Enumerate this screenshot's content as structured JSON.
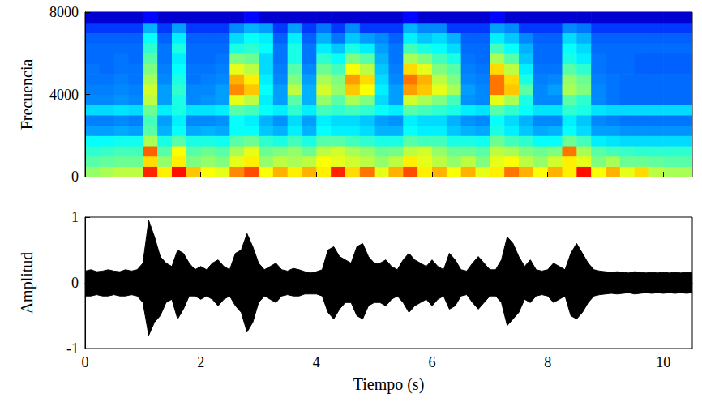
{
  "chart_data": [
    {
      "type": "heatmap",
      "ylabel": "Frecuencia",
      "xlim": [
        0,
        10.5
      ],
      "xticks": [
        0,
        2,
        4,
        6,
        8,
        10
      ],
      "ylim": [
        0,
        8000
      ],
      "yticks": [
        0,
        4000,
        8000
      ],
      "tick_labels": "y",
      "clim": [
        0,
        10
      ],
      "time_edges": [
        0,
        0.25,
        0.5,
        0.75,
        1,
        1.25,
        1.5,
        1.75,
        2,
        2.25,
        2.5,
        2.75,
        3,
        3.25,
        3.5,
        3.75,
        4,
        4.25,
        4.5,
        4.75,
        5,
        5.25,
        5.5,
        5.75,
        6,
        6.25,
        6.5,
        6.75,
        7,
        7.25,
        7.5,
        7.75,
        8,
        8.25,
        8.5,
        8.75,
        9,
        9.25,
        9.5,
        9.75,
        10,
        10.25,
        10.5
      ],
      "freq_edges": [
        0,
        500,
        1000,
        1500,
        2000,
        2500,
        3000,
        3500,
        4000,
        4500,
        5000,
        5500,
        6000,
        6500,
        7000,
        7500,
        8000
      ],
      "cells": [
        [
          5.2,
          5.4,
          5.6,
          5.6,
          8.4,
          6.4,
          8.6,
          6.8,
          6.2,
          6.0,
          7.4,
          8.0,
          6.2,
          7.0,
          6.4,
          7.0,
          6.4,
          8.4,
          6.6,
          7.6,
          6.0,
          7.0,
          8.0,
          6.4,
          7.0,
          6.2,
          7.0,
          6.0,
          6.4,
          7.6,
          7.0,
          6.2,
          7.0,
          6.4,
          8.6,
          6.2,
          7.0,
          6.0,
          6.6,
          5.6,
          5.4,
          5.4
        ],
        [
          4.6,
          4.7,
          4.8,
          4.8,
          6.6,
          5.2,
          6.4,
          5.0,
          5.2,
          5.0,
          6.0,
          6.4,
          5.2,
          5.6,
          5.4,
          5.6,
          6.2,
          6.0,
          5.8,
          5.6,
          5.2,
          5.6,
          6.4,
          6.0,
          5.6,
          5.2,
          5.6,
          5.0,
          6.0,
          6.2,
          5.6,
          5.2,
          5.8,
          6.4,
          6.0,
          5.0,
          5.4,
          4.8,
          4.8,
          4.7,
          4.6,
          4.6
        ],
        [
          4.2,
          4.3,
          4.4,
          4.4,
          7.8,
          4.6,
          6.2,
          4.6,
          4.8,
          4.6,
          5.4,
          6.0,
          4.8,
          5.0,
          5.2,
          4.8,
          5.6,
          5.8,
          5.4,
          5.2,
          4.8,
          4.9,
          5.6,
          5.8,
          5.2,
          4.8,
          4.8,
          4.6,
          5.6,
          5.4,
          5.0,
          4.8,
          5.0,
          7.6,
          5.4,
          4.6,
          4.4,
          4.3,
          4.2,
          4.2,
          4.2,
          4.2
        ],
        [
          3.8,
          3.8,
          3.9,
          3.9,
          5.4,
          4.0,
          4.6,
          4.0,
          4.0,
          3.9,
          4.6,
          4.8,
          4.2,
          4.0,
          4.4,
          4.0,
          4.6,
          4.6,
          4.4,
          4.2,
          4.0,
          4.0,
          4.6,
          4.4,
          4.4,
          4.0,
          4.0,
          3.9,
          4.8,
          4.4,
          4.2,
          3.8,
          3.8,
          4.8,
          4.4,
          3.6,
          3.5,
          3.4,
          3.4,
          3.4,
          3.4,
          3.4
        ],
        [
          2.8,
          2.8,
          2.9,
          2.8,
          4.6,
          3.0,
          3.8,
          2.9,
          3.0,
          2.9,
          3.8,
          3.8,
          3.2,
          3.0,
          3.6,
          3.0,
          3.8,
          3.6,
          3.6,
          3.4,
          3.0,
          3.0,
          3.8,
          3.6,
          3.6,
          3.2,
          3.0,
          2.9,
          4.0,
          3.6,
          3.2,
          2.9,
          3.0,
          3.8,
          3.4,
          2.8,
          2.8,
          2.7,
          2.7,
          2.7,
          2.7,
          2.7
        ],
        [
          2.5,
          2.5,
          2.6,
          2.5,
          4.4,
          2.8,
          3.6,
          2.6,
          2.6,
          2.7,
          3.8,
          3.6,
          3.0,
          2.7,
          3.4,
          2.8,
          3.6,
          3.4,
          3.4,
          3.2,
          2.8,
          2.7,
          3.6,
          3.4,
          3.4,
          3.0,
          2.7,
          2.6,
          3.8,
          3.4,
          3.0,
          2.6,
          2.6,
          3.6,
          3.2,
          2.6,
          2.5,
          2.4,
          2.4,
          2.4,
          2.4,
          2.4
        ],
        [
          3.4,
          3.4,
          3.5,
          3.4,
          4.8,
          3.6,
          4.0,
          3.5,
          3.5,
          3.6,
          4.6,
          4.4,
          3.8,
          3.6,
          4.2,
          3.6,
          4.4,
          4.2,
          4.4,
          4.2,
          3.8,
          3.6,
          4.6,
          4.4,
          4.2,
          4.0,
          3.6,
          3.5,
          4.6,
          4.2,
          3.8,
          3.5,
          3.5,
          4.2,
          4.0,
          3.5,
          3.4,
          3.4,
          3.4,
          3.4,
          3.4,
          3.4
        ],
        [
          2.6,
          2.6,
          2.7,
          2.6,
          5.6,
          2.8,
          4.0,
          2.6,
          2.7,
          2.8,
          6.0,
          5.6,
          3.6,
          2.8,
          4.6,
          3.0,
          5.2,
          4.6,
          5.4,
          5.0,
          3.4,
          2.8,
          5.8,
          5.4,
          5.0,
          4.4,
          2.7,
          2.6,
          6.0,
          5.4,
          4.0,
          2.6,
          2.6,
          4.6,
          4.2,
          2.6,
          2.4,
          2.3,
          2.3,
          2.3,
          2.3,
          2.3
        ],
        [
          2.5,
          2.5,
          2.6,
          2.5,
          5.8,
          2.8,
          4.2,
          2.6,
          2.6,
          2.8,
          7.4,
          6.8,
          3.8,
          2.8,
          5.6,
          3.0,
          5.8,
          5.2,
          6.8,
          6.2,
          3.6,
          2.8,
          7.2,
          6.8,
          6.0,
          5.4,
          2.8,
          2.6,
          7.6,
          6.8,
          4.6,
          2.6,
          2.8,
          5.4,
          5.0,
          2.6,
          2.4,
          2.3,
          2.3,
          2.3,
          2.3,
          2.3
        ],
        [
          2.4,
          2.4,
          2.5,
          2.4,
          5.4,
          2.6,
          4.0,
          2.4,
          2.5,
          2.6,
          7.0,
          6.4,
          3.6,
          2.6,
          5.0,
          2.8,
          5.4,
          5.0,
          7.2,
          6.6,
          3.4,
          2.6,
          7.6,
          7.0,
          5.6,
          5.0,
          2.6,
          2.5,
          7.6,
          6.6,
          4.0,
          2.5,
          2.6,
          5.2,
          4.8,
          2.5,
          2.4,
          2.3,
          2.3,
          2.3,
          2.3,
          2.3
        ],
        [
          2.4,
          2.3,
          2.4,
          2.4,
          5.0,
          2.5,
          3.8,
          2.4,
          2.4,
          2.5,
          6.0,
          5.6,
          3.4,
          2.5,
          4.6,
          2.6,
          4.8,
          4.4,
          6.2,
          5.6,
          3.2,
          2.5,
          6.6,
          6.0,
          5.0,
          4.6,
          2.5,
          2.4,
          6.6,
          5.6,
          3.6,
          2.4,
          2.4,
          4.6,
          4.2,
          2.4,
          2.3,
          2.3,
          2.2,
          2.2,
          2.2,
          2.2
        ],
        [
          2.3,
          2.3,
          2.4,
          2.3,
          4.6,
          2.4,
          3.6,
          2.3,
          2.3,
          2.4,
          5.0,
          4.8,
          3.4,
          2.4,
          4.0,
          2.4,
          4.2,
          3.8,
          5.0,
          4.6,
          3.0,
          2.4,
          5.4,
          5.0,
          4.4,
          4.0,
          2.4,
          2.3,
          5.4,
          4.6,
          3.2,
          2.3,
          2.3,
          4.0,
          3.6,
          2.4,
          2.3,
          2.3,
          2.2,
          2.2,
          2.2,
          2.2
        ],
        [
          2.3,
          2.3,
          2.3,
          2.3,
          4.2,
          2.4,
          4.0,
          2.3,
          2.3,
          2.3,
          4.0,
          4.2,
          3.8,
          2.4,
          4.0,
          2.4,
          3.6,
          3.2,
          4.0,
          3.6,
          2.8,
          2.4,
          4.4,
          4.0,
          3.8,
          3.4,
          2.3,
          2.3,
          4.4,
          3.8,
          3.0,
          2.3,
          2.3,
          3.8,
          3.4,
          2.3,
          2.3,
          2.3,
          2.3,
          2.3,
          2.3,
          2.3
        ],
        [
          2.2,
          2.2,
          2.2,
          2.2,
          3.8,
          2.2,
          3.6,
          2.2,
          2.2,
          2.2,
          3.4,
          3.8,
          3.6,
          2.2,
          3.6,
          2.2,
          3.0,
          2.4,
          3.2,
          2.8,
          2.6,
          2.2,
          3.6,
          3.2,
          3.4,
          3.0,
          2.2,
          2.2,
          3.6,
          3.2,
          2.6,
          2.2,
          2.2,
          3.4,
          3.0,
          2.2,
          2.2,
          2.2,
          2.2,
          2.2,
          2.2,
          2.2
        ],
        [
          1.8,
          1.8,
          1.8,
          1.8,
          3.0,
          1.8,
          2.8,
          1.8,
          1.8,
          1.8,
          2.6,
          3.0,
          2.8,
          1.8,
          2.8,
          1.8,
          2.4,
          1.8,
          2.6,
          1.8,
          1.8,
          1.8,
          3.0,
          2.6,
          2.6,
          1.8,
          1.8,
          1.8,
          2.8,
          2.6,
          1.8,
          1.8,
          1.8,
          2.6,
          2.4,
          1.8,
          1.8,
          1.8,
          1.8,
          1.8,
          1.8,
          1.8
        ],
        [
          0.8,
          0.8,
          0.8,
          0.8,
          1.3,
          0.8,
          0.8,
          0.8,
          0.8,
          0.8,
          0.8,
          1.3,
          0.8,
          0.8,
          0.8,
          0.8,
          0.8,
          0.8,
          0.8,
          0.8,
          0.8,
          0.8,
          1.3,
          0.8,
          0.8,
          0.8,
          0.8,
          0.8,
          1.3,
          0.8,
          0.8,
          0.8,
          0.8,
          0.8,
          0.8,
          0.8,
          0.8,
          0.8,
          0.8,
          0.8,
          0.8,
          0.8
        ]
      ]
    },
    {
      "type": "line",
      "xlabel": "Tiempo (s)",
      "ylabel": "Amplitud",
      "xlim": [
        0,
        10.5
      ],
      "xticks": [
        0,
        2,
        4,
        6,
        8,
        10
      ],
      "ylim": [
        -1,
        1
      ],
      "yticks": [
        -1,
        0,
        1
      ],
      "x": [
        0,
        0.1,
        0.2,
        0.3,
        0.4,
        0.5,
        0.6,
        0.7,
        0.8,
        0.9,
        1,
        1.1,
        1.2,
        1.3,
        1.4,
        1.5,
        1.6,
        1.7,
        1.8,
        1.9,
        2,
        2.1,
        2.2,
        2.3,
        2.4,
        2.5,
        2.6,
        2.7,
        2.8,
        2.9,
        3,
        3.1,
        3.2,
        3.3,
        3.4,
        3.5,
        3.6,
        3.7,
        3.8,
        3.9,
        4,
        4.1,
        4.2,
        4.3,
        4.4,
        4.5,
        4.6,
        4.7,
        4.8,
        4.9,
        5,
        5.1,
        5.2,
        5.3,
        5.4,
        5.5,
        5.6,
        5.7,
        5.8,
        5.9,
        6,
        6.1,
        6.2,
        6.3,
        6.4,
        6.5,
        6.6,
        6.7,
        6.8,
        6.9,
        7,
        7.1,
        7.2,
        7.3,
        7.4,
        7.5,
        7.6,
        7.7,
        7.8,
        7.9,
        8,
        8.1,
        8.2,
        8.3,
        8.4,
        8.5,
        8.6,
        8.7,
        8.8,
        8.9,
        9,
        9.1,
        9.2,
        9.3,
        9.4,
        9.5,
        9.6,
        9.7,
        9.8,
        9.9,
        10,
        10.1,
        10.2,
        10.3,
        10.4,
        10.5
      ],
      "series": [
        {
          "color": "#000000",
          "values": [
            0.18,
            0.2,
            0.17,
            0.18,
            0.2,
            0.18,
            0.17,
            0.2,
            0.18,
            0.2,
            0.3,
            0.95,
            0.7,
            0.4,
            0.3,
            0.25,
            0.5,
            0.45,
            0.3,
            0.2,
            0.25,
            0.2,
            0.3,
            0.35,
            0.25,
            0.2,
            0.45,
            0.5,
            0.75,
            0.55,
            0.3,
            0.2,
            0.25,
            0.3,
            0.2,
            0.18,
            0.22,
            0.2,
            0.17,
            0.15,
            0.17,
            0.2,
            0.5,
            0.55,
            0.4,
            0.35,
            0.3,
            0.55,
            0.6,
            0.4,
            0.3,
            0.3,
            0.35,
            0.25,
            0.2,
            0.35,
            0.45,
            0.35,
            0.3,
            0.25,
            0.35,
            0.25,
            0.2,
            0.45,
            0.35,
            0.2,
            0.18,
            0.3,
            0.4,
            0.3,
            0.2,
            0.2,
            0.35,
            0.7,
            0.6,
            0.4,
            0.25,
            0.35,
            0.2,
            0.18,
            0.2,
            0.3,
            0.25,
            0.2,
            0.45,
            0.6,
            0.45,
            0.3,
            0.2,
            0.18,
            0.17,
            0.16,
            0.17,
            0.16,
            0.15,
            0.17,
            0.16,
            0.15,
            0.16,
            0.15,
            0.16,
            0.15,
            0.16,
            0.15,
            0.16,
            0.15
          ]
        },
        {
          "color": "#000000",
          "values": [
            -0.2,
            -0.2,
            -0.18,
            -0.2,
            -0.2,
            -0.18,
            -0.2,
            -0.2,
            -0.18,
            -0.2,
            -0.3,
            -0.8,
            -0.6,
            -0.5,
            -0.3,
            -0.25,
            -0.55,
            -0.4,
            -0.2,
            -0.2,
            -0.25,
            -0.2,
            -0.25,
            -0.35,
            -0.25,
            -0.2,
            -0.35,
            -0.45,
            -0.75,
            -0.6,
            -0.3,
            -0.2,
            -0.25,
            -0.3,
            -0.2,
            -0.18,
            -0.2,
            -0.2,
            -0.17,
            -0.17,
            -0.17,
            -0.2,
            -0.45,
            -0.55,
            -0.4,
            -0.3,
            -0.3,
            -0.5,
            -0.55,
            -0.35,
            -0.3,
            -0.3,
            -0.35,
            -0.25,
            -0.2,
            -0.3,
            -0.45,
            -0.35,
            -0.3,
            -0.25,
            -0.35,
            -0.25,
            -0.2,
            -0.4,
            -0.35,
            -0.2,
            -0.18,
            -0.3,
            -0.4,
            -0.3,
            -0.2,
            -0.2,
            -0.3,
            -0.65,
            -0.55,
            -0.45,
            -0.25,
            -0.3,
            -0.2,
            -0.18,
            -0.2,
            -0.3,
            -0.25,
            -0.2,
            -0.5,
            -0.55,
            -0.45,
            -0.3,
            -0.2,
            -0.18,
            -0.17,
            -0.16,
            -0.17,
            -0.16,
            -0.15,
            -0.17,
            -0.16,
            -0.15,
            -0.16,
            -0.15,
            -0.16,
            -0.15,
            -0.16,
            -0.15,
            -0.16,
            -0.15
          ]
        }
      ]
    }
  ]
}
